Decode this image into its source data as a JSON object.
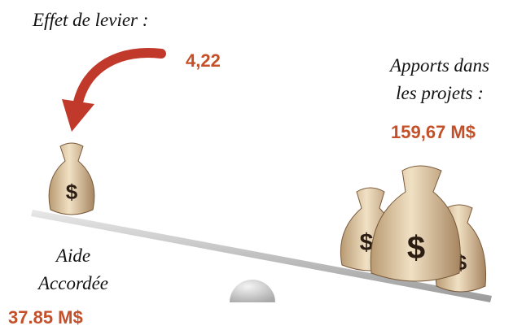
{
  "leverage": {
    "label": "Effet de levier :",
    "value": "4,22"
  },
  "contributions": {
    "label_lines": [
      "Apports dans",
      "les projets :"
    ],
    "value": "159,67 M$"
  },
  "grant": {
    "label_lines": [
      "Aide",
      "Accordée"
    ],
    "value": "37.85 M$"
  }
}
